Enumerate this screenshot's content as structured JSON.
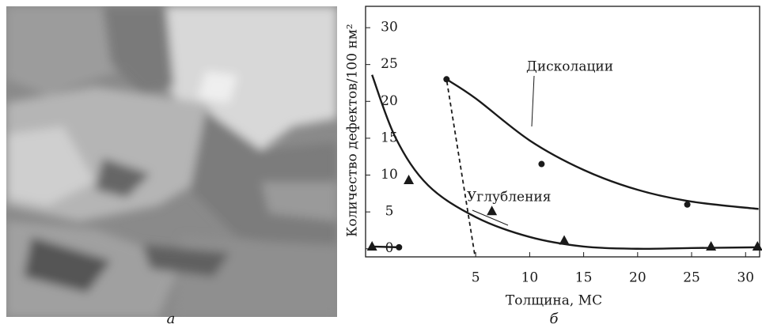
{
  "image_label": "а",
  "chart_data": {
    "type": "scatter",
    "panel_label": "б",
    "x_label": "Толщина, МС",
    "y_label": "Количество дефектов/100 нм²",
    "xlim": [
      -5.2,
      31.3
    ],
    "ylim": [
      -1.1,
      32.9
    ],
    "xticks": [
      5,
      10,
      15,
      20,
      25,
      30
    ],
    "yticks": [
      0,
      5,
      10,
      15,
      20,
      25,
      30
    ],
    "color": "#1a1a1a",
    "series": [
      {
        "name": "Дисколации",
        "marker": "circle",
        "x": [
          -2.1,
          2.3,
          11.1,
          24.6
        ],
        "values": [
          0.2,
          23,
          11.5,
          6
        ]
      },
      {
        "name": "Углубления",
        "marker": "triangle",
        "x": [
          -4.6,
          -1.2,
          6.5,
          13.2,
          26.8,
          31.1
        ],
        "values": [
          0.3,
          9.3,
          5.1,
          1.1,
          0.3,
          0.3
        ]
      }
    ],
    "curves": [
      {
        "x": [
          2.3,
          5,
          10,
          15,
          20,
          25,
          31.2
        ],
        "values": [
          23,
          20.4,
          14.7,
          10.7,
          8,
          6.4,
          5.4
        ]
      },
      {
        "x": [
          -4.6,
          -2.4,
          0.6,
          5,
          10,
          15,
          20,
          25,
          31.2
        ],
        "values": [
          23.6,
          15,
          8.6,
          4.3,
          1.6,
          0.3,
          0,
          0.1,
          0.2
        ]
      },
      {
        "x": [
          -4.6,
          -2.1
        ],
        "values": [
          0.3,
          0.2
        ]
      },
      {
        "x": [
          4.9,
          2.3
        ],
        "values": [
          -0.7,
          23
        ],
        "style": "dashed"
      }
    ]
  }
}
